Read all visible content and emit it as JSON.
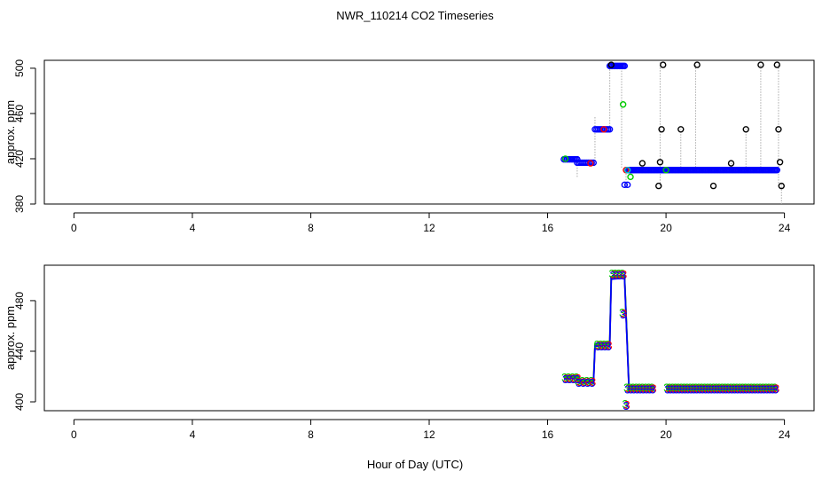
{
  "title": "NWR_110214  CO2 Timeseries",
  "xlabel": "Hour of Day (UTC)",
  "colors": {
    "black": "#000000",
    "blue": "#0000ff",
    "green": "#00cc00",
    "red": "#ff0000",
    "cyan": "#00cccc",
    "grey": "#aaaaaa"
  },
  "chart_data": [
    {
      "type": "scatter",
      "ylabel": "approx. ppm",
      "xlim": [
        -1,
        25
      ],
      "ylim": [
        380,
        507
      ],
      "xticks": [
        0,
        4,
        8,
        12,
        16,
        20,
        24
      ],
      "yticks": [
        380,
        420,
        460,
        500
      ],
      "grey_segments": [
        [
          17.0,
          404,
          17.0,
          421
        ],
        [
          17.6,
          418,
          17.6,
          458
        ],
        [
          18.1,
          446,
          18.1,
          505
        ],
        [
          18.5,
          412,
          18.5,
          502
        ],
        [
          18.65,
          394,
          18.65,
          412
        ],
        [
          19.8,
          396,
          19.8,
          506
        ],
        [
          20.5,
          410,
          20.5,
          446
        ],
        [
          21.0,
          410,
          21.0,
          504
        ],
        [
          22.2,
          408,
          22.2,
          418
        ],
        [
          22.7,
          410,
          22.7,
          446
        ],
        [
          23.2,
          410,
          23.2,
          504
        ],
        [
          23.8,
          396,
          23.8,
          504
        ],
        [
          23.9,
          380,
          23.9,
          398
        ]
      ],
      "series": [
        {
          "color": "blue",
          "runs": [
            {
              "x0": 16.55,
              "x1": 17.0,
              "y": 419.5,
              "n": 10
            },
            {
              "x0": 17.0,
              "x1": 17.55,
              "y": 416.5,
              "n": 10
            },
            {
              "x0": 17.6,
              "x1": 18.1,
              "y": 446,
              "n": 10
            },
            {
              "x0": 18.1,
              "x1": 18.6,
              "y": 502,
              "n": 12
            },
            {
              "x0": 18.7,
              "x1": 23.75,
              "y": 410,
              "n": 120
            }
          ],
          "points": [
            [
              18.6,
              397
            ],
            [
              18.7,
              397
            ]
          ]
        },
        {
          "color": "black",
          "runs": [],
          "points": [
            [
              18.15,
              503
            ],
            [
              19.2,
              416
            ],
            [
              19.75,
              396
            ],
            [
              19.8,
              417
            ],
            [
              19.85,
              446
            ],
            [
              19.9,
              503
            ],
            [
              20.5,
              446
            ],
            [
              21.05,
              503
            ],
            [
              21.6,
              396
            ],
            [
              22.2,
              416
            ],
            [
              22.7,
              446
            ],
            [
              23.2,
              503
            ],
            [
              23.75,
              503
            ],
            [
              23.8,
              446
            ],
            [
              23.85,
              417
            ],
            [
              23.9,
              396
            ]
          ]
        },
        {
          "color": "green",
          "runs": [],
          "points": [
            [
              16.6,
              420
            ],
            [
              18.55,
              468
            ],
            [
              18.8,
              404
            ],
            [
              20.0,
              410
            ]
          ]
        },
        {
          "color": "red",
          "runs": [],
          "points": [
            [
              17.9,
              446
            ],
            [
              18.65,
              410
            ],
            [
              17.45,
              416
            ]
          ]
        },
        {
          "color": "cyan",
          "runs": [],
          "points": [
            [
              18.7,
              410
            ]
          ]
        }
      ]
    },
    {
      "type": "line",
      "ylabel": "approx. ppm",
      "xlim": [
        -1,
        25
      ],
      "ylim": [
        393,
        508
      ],
      "xticks": [
        0,
        4,
        8,
        12,
        16,
        20,
        24
      ],
      "yticks": [
        400,
        440,
        480
      ],
      "marker_text": "3",
      "lines": [
        {
          "color": "red",
          "x": [
            16.55,
            17.0,
            17.05,
            17.55,
            17.6,
            18.1,
            18.15,
            18.6,
            18.75,
            19.6
          ],
          "y": [
            419,
            420,
            416,
            416,
            445,
            446,
            498,
            499,
            411,
            411
          ]
        },
        {
          "color": "green",
          "x": [
            16.55,
            17.0,
            17.05,
            17.55,
            17.6,
            18.1,
            18.15,
            18.6,
            18.75,
            19.6
          ],
          "y": [
            420,
            421,
            417,
            417,
            446,
            447,
            499,
            500,
            412,
            412
          ]
        },
        {
          "color": "blue",
          "x": [
            16.55,
            17.0,
            17.05,
            17.55,
            17.6,
            18.1,
            18.15,
            18.6,
            18.75,
            19.6
          ],
          "y": [
            418,
            419,
            415,
            415,
            444,
            445,
            497,
            498,
            410,
            410
          ]
        },
        {
          "color": "red",
          "x": [
            20.0,
            23.75
          ],
          "y": [
            411,
            411
          ]
        },
        {
          "color": "green",
          "x": [
            20.0,
            23.75
          ],
          "y": [
            412,
            412
          ]
        },
        {
          "color": "blue",
          "x": [
            20.0,
            23.75
          ],
          "y": [
            410,
            410
          ]
        }
      ],
      "label_runs": [
        {
          "x0": 16.6,
          "x1": 17.0,
          "y": 419,
          "n": 4
        },
        {
          "x0": 17.05,
          "x1": 17.5,
          "y": 416,
          "n": 4
        },
        {
          "x0": 17.7,
          "x1": 18.05,
          "y": 445,
          "n": 4
        },
        {
          "x0": 18.2,
          "x1": 18.55,
          "y": 501,
          "n": 4
        },
        {
          "x0": 18.7,
          "x1": 19.55,
          "y": 411,
          "n": 9
        },
        {
          "x0": 20.05,
          "x1": 23.7,
          "y": 411,
          "n": 38
        }
      ],
      "label_points": [
        [
          18.55,
          470
        ],
        [
          18.65,
          398
        ]
      ]
    }
  ]
}
